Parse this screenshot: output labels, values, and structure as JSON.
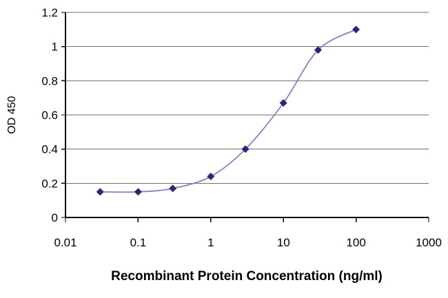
{
  "chart_data": {
    "type": "line",
    "title": "",
    "xlabel": "Recombinant Protein Concentration (ng/ml)",
    "ylabel": "OD 450",
    "x_scale": "log",
    "xlim": [
      0.01,
      1000
    ],
    "ylim": [
      0,
      1.2
    ],
    "x_ticks": [
      0.01,
      0.1,
      1,
      10,
      100,
      1000
    ],
    "x_tick_labels": [
      "0.01",
      "0.1",
      "1",
      "10",
      "100",
      "1000"
    ],
    "y_ticks": [
      0,
      0.2,
      0.4,
      0.6,
      0.8,
      1,
      1.2
    ],
    "y_tick_labels": [
      "0",
      "0.2",
      "0.4",
      "0.6",
      "0.8",
      "1",
      "1.2"
    ],
    "grid": "horizontal",
    "legend": "none",
    "series": [
      {
        "name": "OD 450",
        "marker": "diamond",
        "x": [
          0.03,
          0.1,
          0.3,
          1,
          3,
          10,
          30,
          100
        ],
        "y": [
          0.15,
          0.15,
          0.17,
          0.24,
          0.4,
          0.67,
          0.98,
          1.1
        ]
      }
    ],
    "colors": {
      "line": "#8282c8",
      "marker": "#26267e",
      "grid": "#6e6e6e",
      "axis": "#000000",
      "background": "#ffffff",
      "text": "#000000"
    }
  }
}
